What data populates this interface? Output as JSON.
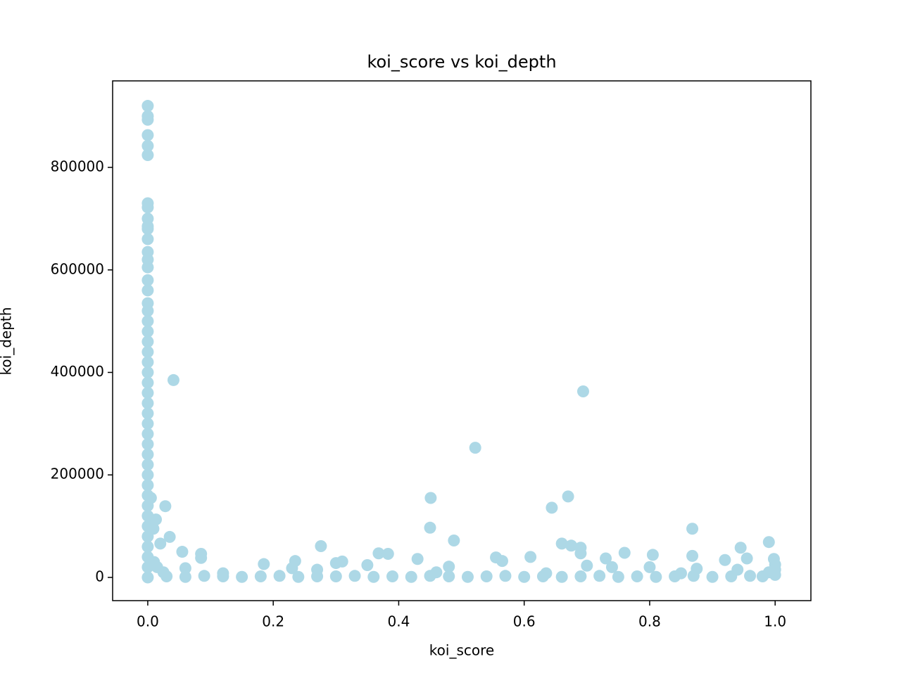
{
  "chart_data": {
    "type": "scatter",
    "title": "koi_score vs koi_depth",
    "x_label": "koi_score",
    "y_label": "koi_depth",
    "color": "#add8e6",
    "x": [
      0,
      0,
      0,
      0,
      0,
      0,
      0,
      0,
      0,
      0,
      0,
      0,
      0,
      0,
      0,
      0,
      0,
      0,
      0,
      0,
      0,
      0,
      0,
      0,
      0,
      0,
      0,
      0,
      0,
      0,
      0,
      0,
      0,
      0,
      0,
      0,
      0,
      0,
      0,
      0,
      0,
      0,
      0,
      0,
      0,
      0.041,
      0.694,
      0.522,
      0.451,
      0.67,
      0.644,
      0.028,
      0.005,
      0.013,
      0.009,
      0.45,
      0.868,
      0.035,
      0.488,
      0.99,
      0.66,
      0.675,
      0.276,
      0.945,
      0.69,
      0.02,
      0.055,
      0.69,
      0.76,
      0.368,
      0.383,
      0.085,
      0.805,
      0.868,
      0.61,
      0.555,
      0.085,
      0.43,
      0.73,
      0.955,
      0.92,
      0.998,
      0.235,
      0.31,
      0.3,
      0.565,
      0.185,
      0.35,
      0.48,
      0.7,
      0.74,
      0.8,
      0.875,
      0.23,
      0.27,
      0.94,
      0.06,
      0.12,
      0.46,
      0.635,
      0.85,
      1.0,
      1.0,
      1.0,
      0.99,
      0.03,
      0.06,
      0.09,
      0.12,
      0.15,
      0.18,
      0.21,
      0.24,
      0.27,
      0.3,
      0.33,
      0.36,
      0.39,
      0.42,
      0.45,
      0.48,
      0.51,
      0.54,
      0.57,
      0.6,
      0.63,
      0.66,
      0.69,
      0.72,
      0.75,
      0.78,
      0.81,
      0.84,
      0.87,
      0.9,
      0.93,
      0.96,
      0.98,
      0.01,
      0.015,
      0.025
    ],
    "values": [
      920000,
      900000,
      893000,
      863000,
      842000,
      824000,
      730000,
      722000,
      700000,
      685000,
      680000,
      660000,
      635000,
      620000,
      605000,
      580000,
      560000,
      535000,
      520000,
      500000,
      480000,
      460000,
      440000,
      420000,
      400000,
      380000,
      360000,
      340000,
      320000,
      300000,
      280000,
      260000,
      240000,
      220000,
      200000,
      180000,
      160000,
      140000,
      120000,
      100000,
      80000,
      60000,
      40000,
      20000,
      0,
      385000,
      363000,
      253000,
      155000,
      158000,
      136000,
      139000,
      155000,
      113000,
      95000,
      97000,
      95000,
      79000,
      72000,
      69000,
      66000,
      62000,
      61000,
      58000,
      58000,
      66000,
      50000,
      47000,
      48000,
      47000,
      46000,
      46000,
      44000,
      42000,
      40000,
      39000,
      38000,
      36000,
      37000,
      37000,
      34000,
      36000,
      32000,
      31000,
      28000,
      32000,
      26000,
      24000,
      21000,
      23000,
      20000,
      20000,
      17000,
      18000,
      15000,
      15000,
      18000,
      8000,
      10000,
      8000,
      8000,
      25000,
      15000,
      5000,
      10000,
      2000,
      1000,
      3000,
      2000,
      1000,
      2000,
      3000,
      1000,
      2000,
      2000,
      3000,
      1000,
      2000,
      1000,
      3000,
      2000,
      1000,
      2000,
      3000,
      1000,
      2000,
      1000,
      2000,
      3000,
      1000,
      2000,
      1000,
      2000,
      3000,
      1000,
      2000,
      3000,
      2000,
      30000,
      20000,
      10000
    ],
    "xlim": [
      -0.056,
      1.057
    ],
    "ylim": [
      -45300,
      968800
    ],
    "xticks": [
      {
        "value": 0,
        "label": "0.0"
      },
      0.2,
      0.4,
      0.6,
      0.8,
      {
        "value": 1,
        "label": "1.0"
      }
    ],
    "yticks": [
      0,
      200000,
      400000,
      600000,
      800000
    ]
  }
}
